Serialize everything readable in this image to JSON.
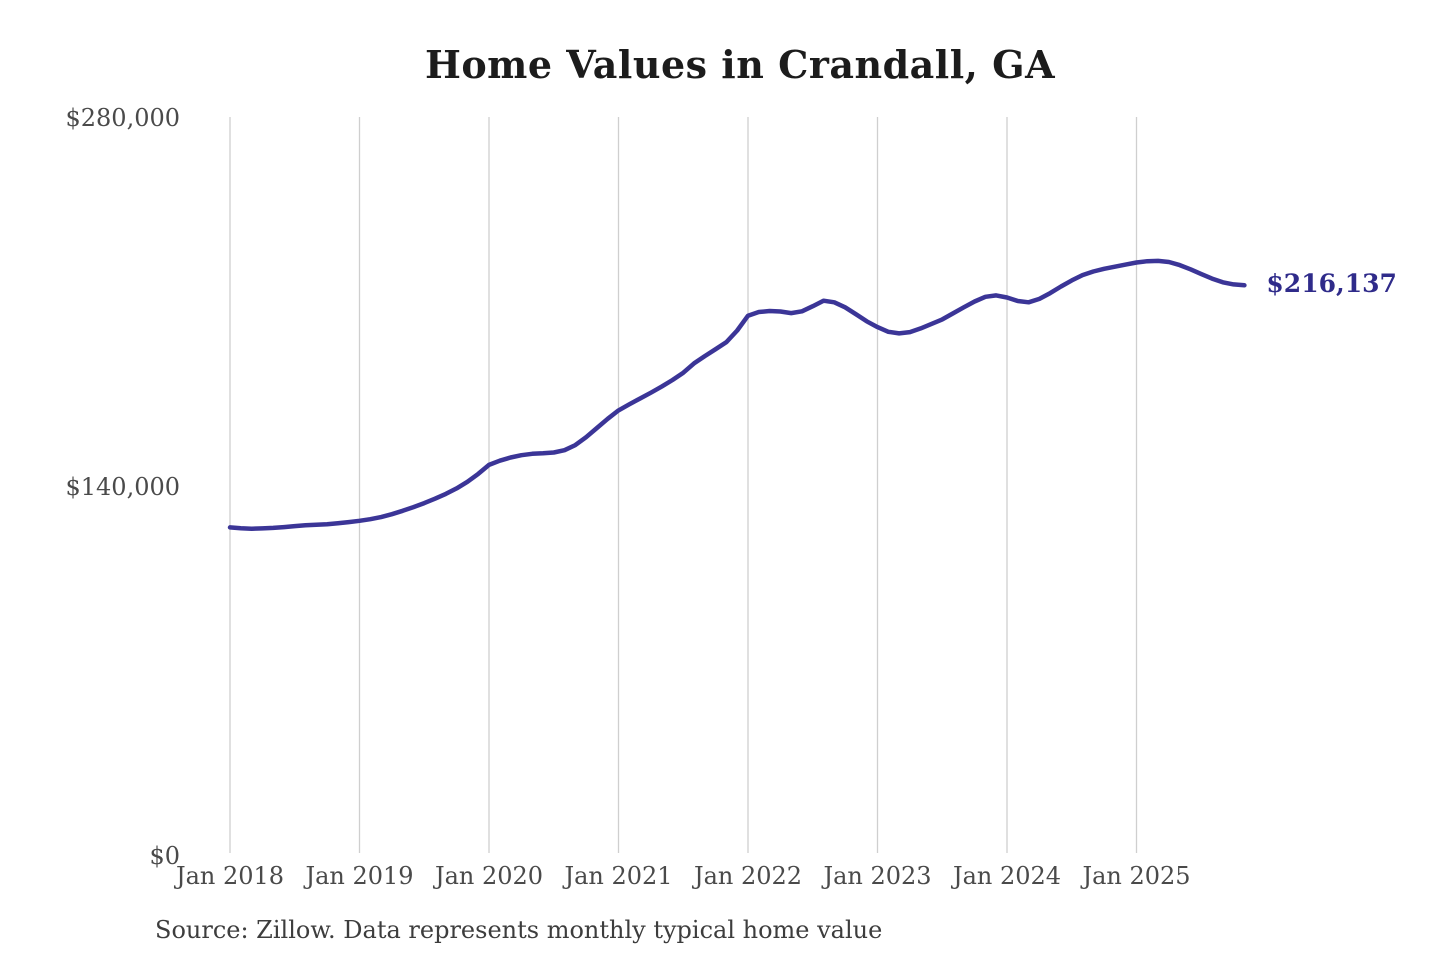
{
  "page": {
    "background": "#ffffff"
  },
  "header": {
    "title": "Home Values in Crandall, GA"
  },
  "chart_data": {
    "type": "line",
    "title": "Home Values in Crandall, GA",
    "series_name": "Monthly typical home value",
    "unit": "USD",
    "legend": "none",
    "grid": "vertical-only",
    "x_axis": {
      "ticks": [
        "Jan 2018",
        "Jan 2019",
        "Jan 2020",
        "Jan 2021",
        "Jan 2022",
        "Jan 2023",
        "Jan 2024",
        "Jan 2025"
      ],
      "tick_interval_months": 12
    },
    "y_axis": {
      "min": 0,
      "max": 280000,
      "ticks": [
        {
          "label": "$280,000",
          "value": 280000
        },
        {
          "label": "$140,000",
          "value": 140000
        },
        {
          "label": "$0",
          "value": 0
        }
      ]
    },
    "end_label": {
      "text": "$216,137",
      "value": 216137
    },
    "points": [
      [
        "Jan 2018",
        124300
      ],
      [
        "Feb 2018",
        124000
      ],
      [
        "Mar 2018",
        123800
      ],
      [
        "Apr 2018",
        123900
      ],
      [
        "May 2018",
        124100
      ],
      [
        "Jun 2018",
        124400
      ],
      [
        "Jul 2018",
        124800
      ],
      [
        "Aug 2018",
        125100
      ],
      [
        "Sep 2018",
        125300
      ],
      [
        "Oct 2018",
        125500
      ],
      [
        "Nov 2018",
        125900
      ],
      [
        "Dec 2018",
        126300
      ],
      [
        "Jan 2019",
        126800
      ],
      [
        "Feb 2019",
        127400
      ],
      [
        "Mar 2019",
        128200
      ],
      [
        "Apr 2019",
        129300
      ],
      [
        "May 2019",
        130600
      ],
      [
        "Jun 2019",
        132000
      ],
      [
        "Jul 2019",
        133500
      ],
      [
        "Aug 2019",
        135200
      ],
      [
        "Sep 2019",
        137000
      ],
      [
        "Oct 2019",
        139100
      ],
      [
        "Nov 2019",
        141600
      ],
      [
        "Dec 2019",
        144600
      ],
      [
        "Jan 2020",
        148000
      ],
      [
        "Feb 2020",
        149600
      ],
      [
        "Mar 2020",
        150800
      ],
      [
        "Apr 2020",
        151700
      ],
      [
        "May 2020",
        152200
      ],
      [
        "Jun 2020",
        152400
      ],
      [
        "Jul 2020",
        152700
      ],
      [
        "Aug 2020",
        153600
      ],
      [
        "Sep 2020",
        155500
      ],
      [
        "Oct 2020",
        158500
      ],
      [
        "Nov 2020",
        162000
      ],
      [
        "Dec 2020",
        165500
      ],
      [
        "Jan 2021",
        168700
      ],
      [
        "Feb 2021",
        171000
      ],
      [
        "Mar 2021",
        173200
      ],
      [
        "Apr 2021",
        175400
      ],
      [
        "May 2021",
        177700
      ],
      [
        "Jun 2021",
        180200
      ],
      [
        "Jul 2021",
        183000
      ],
      [
        "Aug 2021",
        186500
      ],
      [
        "Sep 2021",
        189300
      ],
      [
        "Oct 2021",
        191900
      ],
      [
        "Nov 2021",
        194600
      ],
      [
        "Dec 2021",
        199000
      ],
      [
        "Jan 2022",
        204600
      ],
      [
        "Feb 2022",
        206000
      ],
      [
        "Mar 2022",
        206400
      ],
      [
        "Apr 2022",
        206200
      ],
      [
        "May 2022",
        205600
      ],
      [
        "Jun 2022",
        206300
      ],
      [
        "Jul 2022",
        208200
      ],
      [
        "Aug 2022",
        210300
      ],
      [
        "Sep 2022",
        209700
      ],
      [
        "Oct 2022",
        207800
      ],
      [
        "Nov 2022",
        205200
      ],
      [
        "Dec 2022",
        202500
      ],
      [
        "Jan 2023",
        200300
      ],
      [
        "Feb 2023",
        198500
      ],
      [
        "Mar 2023",
        197900
      ],
      [
        "Apr 2023",
        198400
      ],
      [
        "May 2023",
        199800
      ],
      [
        "Jun 2023",
        201500
      ],
      [
        "Jul 2023",
        203200
      ],
      [
        "Aug 2023",
        205500
      ],
      [
        "Sep 2023",
        207800
      ],
      [
        "Oct 2023",
        210000
      ],
      [
        "Nov 2023",
        211800
      ],
      [
        "Dec 2023",
        212300
      ],
      [
        "Jan 2024",
        211500
      ],
      [
        "Feb 2024",
        210200
      ],
      [
        "Mar 2024",
        209700
      ],
      [
        "Apr 2024",
        211000
      ],
      [
        "May 2024",
        213200
      ],
      [
        "Jun 2024",
        215700
      ],
      [
        "Jul 2024",
        218000
      ],
      [
        "Aug 2024",
        220000
      ],
      [
        "Sep 2024",
        221400
      ],
      [
        "Oct 2024",
        222400
      ],
      [
        "Nov 2024",
        223200
      ],
      [
        "Dec 2024",
        224000
      ],
      [
        "Jan 2025",
        224800
      ],
      [
        "Feb 2025",
        225300
      ],
      [
        "Mar 2025",
        225400
      ],
      [
        "Apr 2025",
        225000
      ],
      [
        "May 2025",
        223800
      ],
      [
        "Jun 2025",
        222200
      ],
      [
        "Jul 2025",
        220400
      ],
      [
        "Aug 2025",
        218700
      ],
      [
        "Sep 2025",
        217300
      ],
      [
        "Oct 2025",
        216500
      ],
      [
        "Nov 2025",
        216137
      ]
    ]
  },
  "footer": {
    "source": "Source: Zillow. Data represents monthly typical home value"
  },
  "colors": {
    "line": "#3b3597",
    "end_label": "#2f2b8a",
    "grid": "#cfcfcf",
    "axis_text": "#4a4a4a",
    "title_text": "#1c1c1c",
    "source_text": "#3d3d3d",
    "background": "#ffffff"
  }
}
